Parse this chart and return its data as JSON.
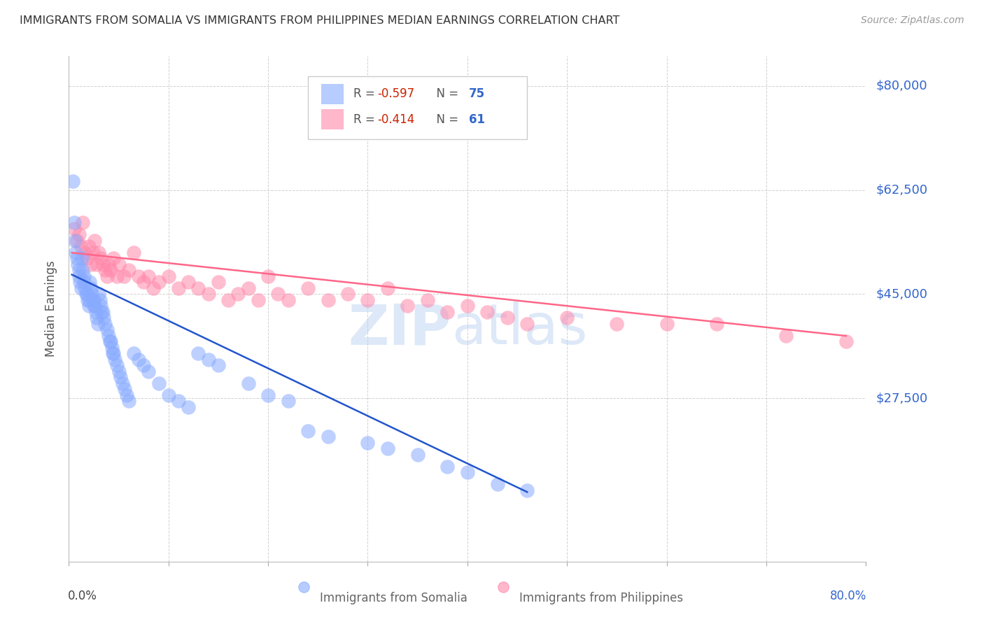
{
  "title": "IMMIGRANTS FROM SOMALIA VS IMMIGRANTS FROM PHILIPPINES MEDIAN EARNINGS CORRELATION CHART",
  "source": "Source: ZipAtlas.com",
  "ylabel": "Median Earnings",
  "ytick_labels": [
    "$80,000",
    "$62,500",
    "$45,000",
    "$27,500"
  ],
  "ytick_values": [
    80000,
    62500,
    45000,
    27500
  ],
  "ylim": [
    0,
    85000
  ],
  "xlim": [
    0.0,
    0.8
  ],
  "somalia_color": "#88aaff",
  "philippines_color": "#ff88aa",
  "trend_somalia_color": "#2255cc",
  "trend_philippines_color": "#ff6688",
  "somalia_R": -0.597,
  "somalia_N": 75,
  "philippines_R": -0.414,
  "philippines_N": 61,
  "R_label_color": "#cc2200",
  "N_label_color": "#3366cc",
  "ytick_color": "#3366cc",
  "xtick_left_color": "#444444",
  "xtick_right_color": "#3366cc",
  "watermark_color": "#dde8f8",
  "grid_color": "#cccccc",
  "title_color": "#333333",
  "source_color": "#999999",
  "ylabel_color": "#555555",
  "bottom_legend_color": "#666666",
  "somalia_x": [
    0.004,
    0.005,
    0.006,
    0.007,
    0.008,
    0.009,
    0.01,
    0.01,
    0.011,
    0.012,
    0.013,
    0.014,
    0.015,
    0.015,
    0.016,
    0.017,
    0.018,
    0.019,
    0.02,
    0.02,
    0.021,
    0.022,
    0.023,
    0.024,
    0.025,
    0.025,
    0.026,
    0.027,
    0.028,
    0.029,
    0.03,
    0.031,
    0.032,
    0.033,
    0.034,
    0.035,
    0.036,
    0.038,
    0.04,
    0.041,
    0.042,
    0.043,
    0.044,
    0.045,
    0.046,
    0.048,
    0.05,
    0.052,
    0.054,
    0.056,
    0.058,
    0.06,
    0.065,
    0.07,
    0.075,
    0.08,
    0.09,
    0.1,
    0.11,
    0.12,
    0.13,
    0.14,
    0.15,
    0.18,
    0.2,
    0.22,
    0.24,
    0.26,
    0.3,
    0.32,
    0.35,
    0.38,
    0.4,
    0.43,
    0.46
  ],
  "somalia_y": [
    64000,
    57000,
    54000,
    52000,
    51000,
    50000,
    49000,
    48000,
    47000,
    46000,
    51000,
    49000,
    48000,
    47000,
    46000,
    45000,
    45000,
    44000,
    44000,
    43000,
    47000,
    46000,
    45000,
    44000,
    44000,
    43000,
    43000,
    42000,
    41000,
    40000,
    45000,
    44000,
    43000,
    42000,
    42000,
    41000,
    40000,
    39000,
    38000,
    37000,
    37000,
    36000,
    35000,
    35000,
    34000,
    33000,
    32000,
    31000,
    30000,
    29000,
    28000,
    27000,
    35000,
    34000,
    33000,
    32000,
    30000,
    28000,
    27000,
    26000,
    35000,
    34000,
    33000,
    30000,
    28000,
    27000,
    22000,
    21000,
    20000,
    19000,
    18000,
    16000,
    15000,
    13000,
    12000
  ],
  "philippines_x": [
    0.005,
    0.008,
    0.01,
    0.012,
    0.014,
    0.016,
    0.018,
    0.02,
    0.022,
    0.024,
    0.026,
    0.028,
    0.03,
    0.032,
    0.034,
    0.036,
    0.038,
    0.04,
    0.042,
    0.045,
    0.048,
    0.05,
    0.055,
    0.06,
    0.065,
    0.07,
    0.075,
    0.08,
    0.085,
    0.09,
    0.1,
    0.11,
    0.12,
    0.13,
    0.14,
    0.15,
    0.16,
    0.17,
    0.18,
    0.19,
    0.2,
    0.21,
    0.22,
    0.24,
    0.26,
    0.28,
    0.3,
    0.32,
    0.34,
    0.36,
    0.38,
    0.4,
    0.42,
    0.44,
    0.46,
    0.5,
    0.55,
    0.6,
    0.65,
    0.72,
    0.78
  ],
  "philippines_y": [
    56000,
    54000,
    55000,
    53000,
    57000,
    52000,
    51000,
    53000,
    50000,
    52000,
    54000,
    50000,
    52000,
    51000,
    50000,
    49000,
    48000,
    50000,
    49000,
    51000,
    48000,
    50000,
    48000,
    49000,
    52000,
    48000,
    47000,
    48000,
    46000,
    47000,
    48000,
    46000,
    47000,
    46000,
    45000,
    47000,
    44000,
    45000,
    46000,
    44000,
    48000,
    45000,
    44000,
    46000,
    44000,
    45000,
    44000,
    46000,
    43000,
    44000,
    42000,
    43000,
    42000,
    41000,
    40000,
    41000,
    40000,
    40000,
    40000,
    38000,
    37000
  ],
  "somalia_trend_x": [
    0.003,
    0.46
  ],
  "somalia_trend_y_intercept": 48500,
  "somalia_trend_slope": -80000,
  "philippines_trend_x": [
    0.003,
    0.78
  ],
  "philippines_trend_y_intercept": 52000,
  "philippines_trend_slope": -18000
}
